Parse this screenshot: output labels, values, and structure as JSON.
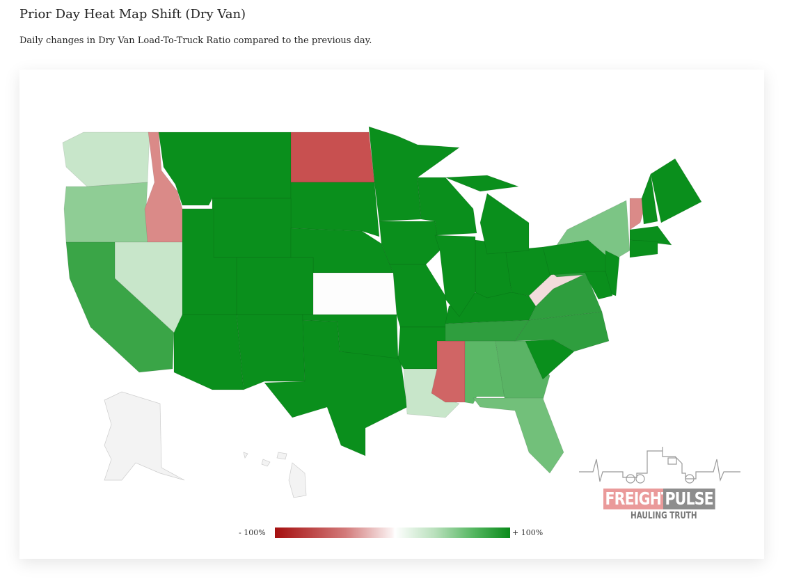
{
  "header": {
    "title": "Prior Day Heat Map Shift (Dry Van)",
    "subtitle": "Daily changes in Dry Van Load-To-Truck Ratio compared to the previous day."
  },
  "legend": {
    "min_label": "- 100%",
    "max_label": "+ 100%",
    "low_color": "#a50f0f",
    "mid_color": "#ffffff",
    "high_color": "#0a8a1a"
  },
  "logo": {
    "word1": "FREIGHT",
    "word2": "PULSE",
    "tagline": "HAULING TRUTH"
  },
  "states": {
    "WA": "#c8e6ca",
    "OR": "#8fcd95",
    "CA": "#3aa547",
    "NV": "#c8e6ca",
    "ID": "#da8a88",
    "MT": "#0a8f1c",
    "WY": "#0a8f1c",
    "UT": "#0a8f1c",
    "AZ": "#0a8f1c",
    "CO": "#0a8f1c",
    "NM": "#0a8f1c",
    "ND": "#c85050",
    "SD": "#0a8f1c",
    "NE": "#0a8f1c",
    "KS": "#fdfdfd",
    "OK": "#0a8f1c",
    "TX": "#0a8f1c",
    "MN": "#0a8f1c",
    "IA": "#0a8f1c",
    "MO": "#0a8f1c",
    "AR": "#0a8f1c",
    "LA": "#c8e6ca",
    "WI": "#0a8f1c",
    "IL": "#0a8f1c",
    "MS": "#d06565",
    "MI": "#0a8f1c",
    "IN": "#0a8f1c",
    "KY": "#0a8f1c",
    "TN": "#2f9e3e",
    "AL": "#5cb867",
    "OH": "#0a8f1c",
    "GA": "#5ab465",
    "FL": "#72c07a",
    "SC": "#0a8f1c",
    "NC": "#2f9e3e",
    "VA": "#2f9e3e",
    "WV": "#f2dcdc",
    "PA": "#0a8f1c",
    "NY": "#7cc585",
    "NJ": "#0a8f1c",
    "MD": "#0a8f1c",
    "VT": "#da8a88",
    "NH": "#0a8f1c",
    "ME": "#0a8f1c",
    "MA": "#0a8f1c",
    "CT": "#0a8f1c",
    "AK": "#f3f3f3",
    "HI": "#f3f3f3"
  }
}
